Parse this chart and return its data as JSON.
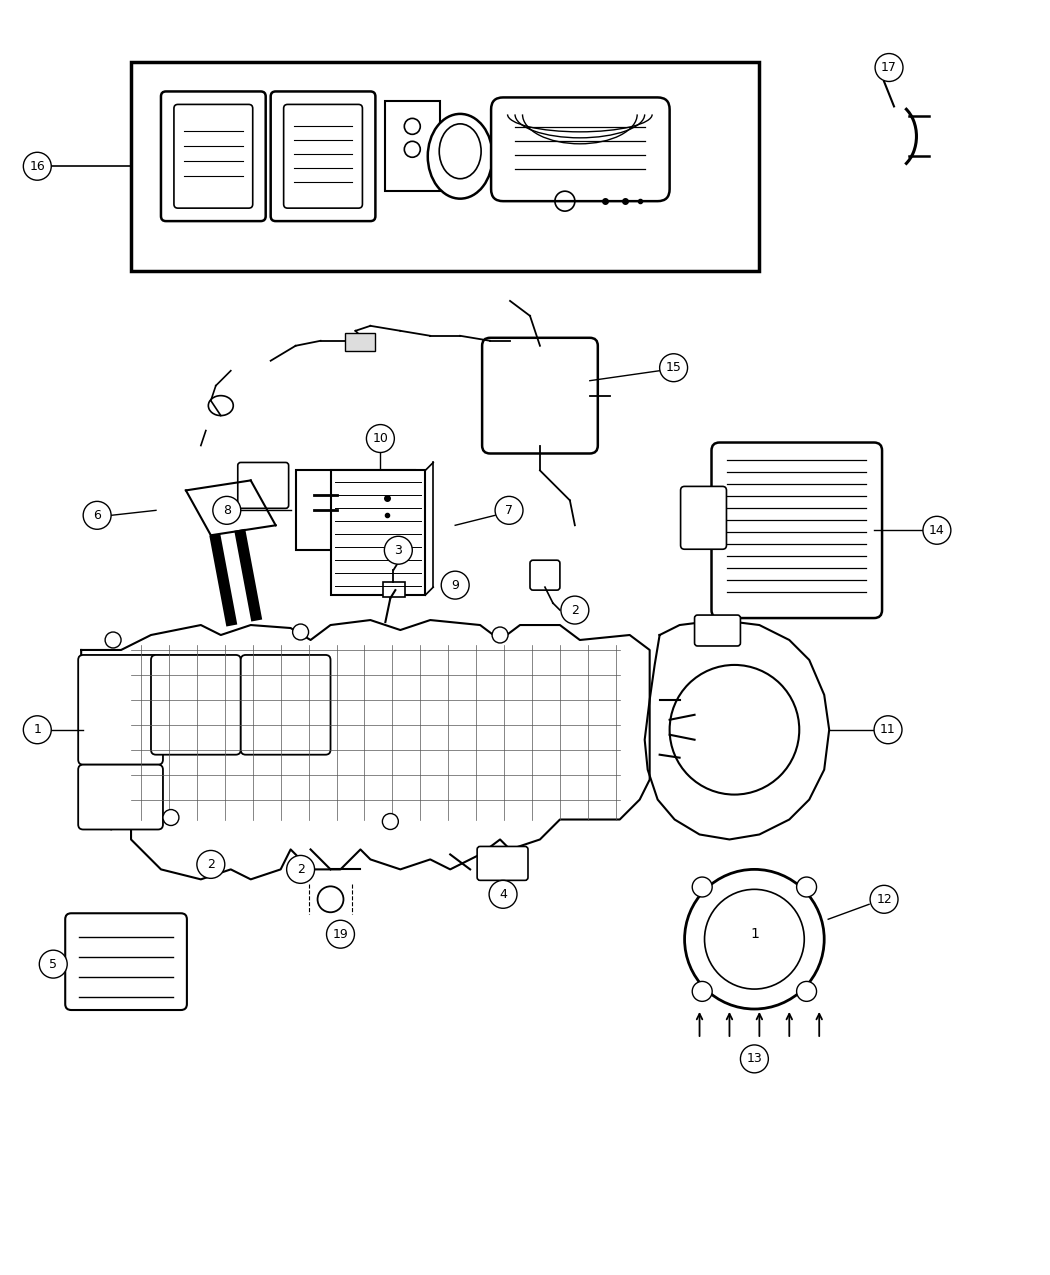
{
  "bg": "#ffffff",
  "lc": "#000000",
  "fw": 10.5,
  "fh": 12.75,
  "dpi": 100
}
